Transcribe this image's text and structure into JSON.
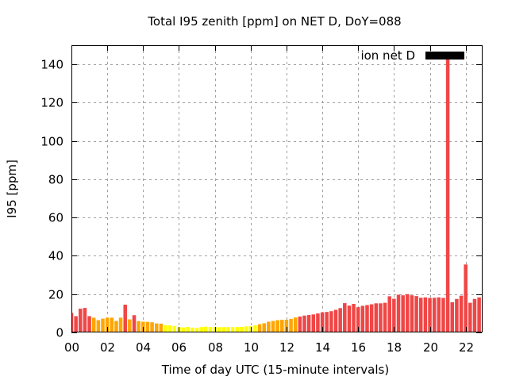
{
  "chart_data": {
    "type": "bar",
    "title": "Total I95 zenith [ppm] on NET D, DoY=088",
    "xlabel": "Time of day UTC (15-minute intervals)",
    "ylabel": "I95 [ppm]",
    "xlim": [
      0,
      22.9
    ],
    "ylim": [
      0,
      150
    ],
    "grid": true,
    "x_tick_labels": [
      "00",
      "02",
      "04",
      "06",
      "08",
      "10",
      "12",
      "14",
      "16",
      "18",
      "20",
      "22"
    ],
    "x_tick_values": [
      0,
      2,
      4,
      6,
      8,
      10,
      12,
      14,
      16,
      18,
      20,
      22
    ],
    "y_tick_values": [
      0,
      20,
      40,
      60,
      80,
      100,
      120,
      140
    ],
    "legend": {
      "label": "ion net D",
      "color": "#000000",
      "placement": "top-right"
    },
    "color_thresholds": {
      "yellow_below": 4,
      "orange_below": 8,
      "red_from": 8
    },
    "colors": {
      "yellow": "#ffff00",
      "orange": "#ffa500",
      "red": "#f04646"
    },
    "bar_width_hours": 0.2,
    "series": [
      {
        "name": "ion net D",
        "x_hours": [
          0,
          0.25,
          0.5,
          0.75,
          1,
          1.25,
          1.5,
          1.75,
          2,
          2.25,
          2.5,
          2.75,
          3,
          3.25,
          3.5,
          3.75,
          4,
          4.25,
          4.5,
          4.75,
          5,
          5.25,
          5.5,
          5.75,
          6,
          6.25,
          6.5,
          6.75,
          7,
          7.25,
          7.5,
          7.75,
          8,
          8.25,
          8.5,
          8.75,
          9,
          9.25,
          9.5,
          9.75,
          10,
          10.25,
          10.5,
          10.75,
          11,
          11.25,
          11.5,
          11.75,
          12,
          12.25,
          12.5,
          12.75,
          13,
          13.25,
          13.5,
          13.75,
          14,
          14.25,
          14.5,
          14.75,
          15,
          15.25,
          15.5,
          15.75,
          16,
          16.25,
          16.5,
          16.75,
          17,
          17.25,
          17.5,
          17.75,
          18,
          18.25,
          18.5,
          18.75,
          19,
          19.25,
          19.5,
          19.75,
          20,
          20.25,
          20.5,
          20.75,
          21,
          21.25,
          21.5,
          21.75,
          22,
          22.25,
          22.5,
          22.75
        ],
        "values": [
          10.2,
          8.5,
          12.4,
          12.8,
          8.5,
          7.7,
          6.4,
          7.2,
          7.7,
          7.7,
          6.0,
          7.7,
          14.5,
          6.8,
          9.0,
          5.9,
          5.6,
          5.5,
          5.3,
          4.7,
          4.6,
          3.8,
          3.7,
          3.4,
          2.7,
          2.6,
          2.9,
          2.5,
          2.3,
          2.8,
          3.0,
          2.9,
          2.9,
          2.7,
          2.8,
          2.8,
          2.8,
          2.8,
          2.9,
          3.2,
          3.3,
          3.7,
          4.3,
          4.8,
          5.6,
          6.0,
          6.4,
          6.6,
          6.6,
          7.1,
          7.8,
          8.3,
          8.8,
          9.1,
          9.4,
          9.9,
          10.5,
          10.7,
          11.1,
          11.8,
          12.7,
          15.3,
          14.0,
          14.9,
          13.2,
          13.9,
          14.3,
          14.7,
          15.2,
          15.2,
          15.5,
          18.9,
          17.6,
          19.7,
          19.4,
          20.0,
          19.4,
          19.0,
          18.1,
          18.3,
          18.0,
          18.1,
          18.3,
          18.0,
          144.0,
          15.8,
          17.5,
          19.2,
          35.5,
          15.5,
          17.5,
          18.3
        ]
      }
    ]
  }
}
